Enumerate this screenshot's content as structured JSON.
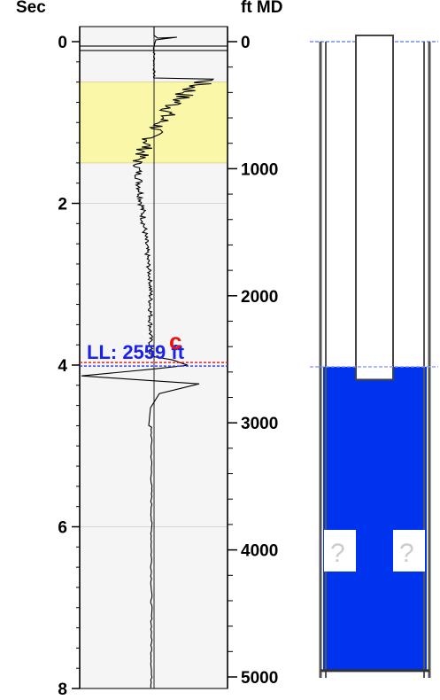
{
  "left_axis": {
    "unit_label": "Sec",
    "ticks": [
      {
        "label": "0",
        "value": 0
      },
      {
        "label": "2",
        "value": 2
      },
      {
        "label": "4",
        "value": 4
      },
      {
        "label": "6",
        "value": 6
      },
      {
        "label": "8",
        "value": 8
      }
    ]
  },
  "right_axis": {
    "unit_label": "ft MD",
    "ticks": [
      {
        "label": "0",
        "value": 0
      },
      {
        "label": "1000",
        "value": 1000
      },
      {
        "label": "2000",
        "value": 2000
      },
      {
        "label": "3000",
        "value": 3000
      },
      {
        "label": "4000",
        "value": 4000
      },
      {
        "label": "5000",
        "value": 5000
      }
    ]
  },
  "liquid_level": {
    "label": "LL: 2559 ft",
    "marker_letter": "c",
    "seconds": 3.98,
    "depth_ft": 2559
  },
  "highlight_band": {
    "from_sec": 0.5,
    "to_sec": 1.5,
    "color": "#fbf7a8"
  },
  "well": {
    "fluid_color": "#0033ee",
    "unknown_marker": "?",
    "fluid_top_ft": 2559,
    "tubing_bottom_ft": 2660,
    "bottom_ft": 4950
  }
}
